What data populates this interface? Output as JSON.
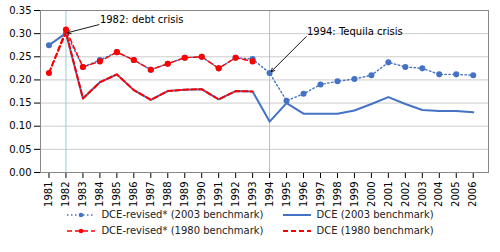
{
  "chart_data": {
    "type": "line",
    "x": [
      1981,
      1982,
      1983,
      1984,
      1985,
      1986,
      1987,
      1988,
      1989,
      1990,
      1991,
      1992,
      1993,
      1994,
      1995,
      1996,
      1997,
      1998,
      1999,
      2000,
      2001,
      2002,
      2003,
      2004,
      2005,
      2006
    ],
    "series": [
      {
        "name": "DCE-revised* (2003 benchmark)",
        "color": "#4472C4",
        "marker": "circle",
        "line_style": "dotted",
        "values": [
          0.275,
          0.301,
          0.228,
          0.243,
          0.26,
          0.243,
          0.222,
          0.235,
          0.248,
          0.25,
          0.225,
          0.248,
          0.245,
          0.215,
          0.155,
          0.17,
          0.19,
          0.197,
          0.202,
          0.21,
          0.238,
          0.228,
          0.225,
          0.212,
          0.212,
          0.21
        ]
      },
      {
        "name": "DCE-revised* (1980 benchmark)",
        "color": "#FF0000",
        "marker": "circle",
        "line_style": "dashed",
        "values": [
          0.215,
          0.309,
          0.228,
          0.24,
          0.26,
          0.243,
          0.222,
          0.235,
          0.248,
          0.25,
          0.225,
          0.248,
          0.24,
          null,
          null,
          null,
          null,
          null,
          null,
          null,
          null,
          null,
          null,
          null,
          null,
          null
        ]
      },
      {
        "name": "DCE (2003 benchmark)",
        "color": "#4472C4",
        "line_style": "solid",
        "values": [
          0.275,
          0.301,
          0.16,
          0.195,
          0.212,
          0.178,
          0.157,
          0.176,
          0.179,
          0.18,
          0.158,
          0.176,
          0.175,
          0.11,
          0.15,
          0.127,
          0.127,
          0.127,
          0.134,
          0.148,
          0.163,
          0.148,
          0.135,
          0.133,
          0.133,
          0.13
        ]
      },
      {
        "name": "DCE (1980 benchmark)",
        "color": "#FF0000",
        "line_style": "dashed",
        "values": [
          0.215,
          0.303,
          0.16,
          0.195,
          0.212,
          0.178,
          0.157,
          0.176,
          0.179,
          0.18,
          0.158,
          0.176,
          0.175,
          null,
          null,
          null,
          null,
          null,
          null,
          null,
          null,
          null,
          null,
          null,
          null,
          null
        ]
      }
    ],
    "vlines": [
      {
        "x": 1982,
        "color": "#92CDDC"
      },
      {
        "x": 1994,
        "color": "#92CDDC"
      }
    ],
    "annotations": [
      {
        "text": "1982: debt crisis",
        "x": 1982.1,
        "y": 0.302,
        "text_x": 1984.0,
        "text_y": 0.32
      },
      {
        "text": "1994: Tequila crisis",
        "x": 1994.1,
        "y": 0.218,
        "text_x": 1996.2,
        "text_y": 0.295
      }
    ],
    "xlim": [
      1980.5,
      2006.9
    ],
    "xticks": [
      1981,
      1982,
      1983,
      1984,
      1985,
      1986,
      1987,
      1988,
      1989,
      1990,
      1991,
      1992,
      1993,
      1994,
      1995,
      1996,
      1997,
      1998,
      1999,
      2000,
      2001,
      2002,
      2003,
      2004,
      2005,
      2006
    ],
    "ylim": [
      0.0,
      0.35
    ],
    "yticks": [
      {
        "value": 0.0,
        "label": "0.00"
      },
      0.05,
      {
        "value": 0.1,
        "label": "0.10"
      },
      0.15,
      {
        "value": 0.2,
        "label": "0.20"
      },
      0.25,
      {
        "value": 0.3,
        "label": "0.30"
      },
      0.35
    ],
    "grid": true,
    "legend": "bottom"
  }
}
